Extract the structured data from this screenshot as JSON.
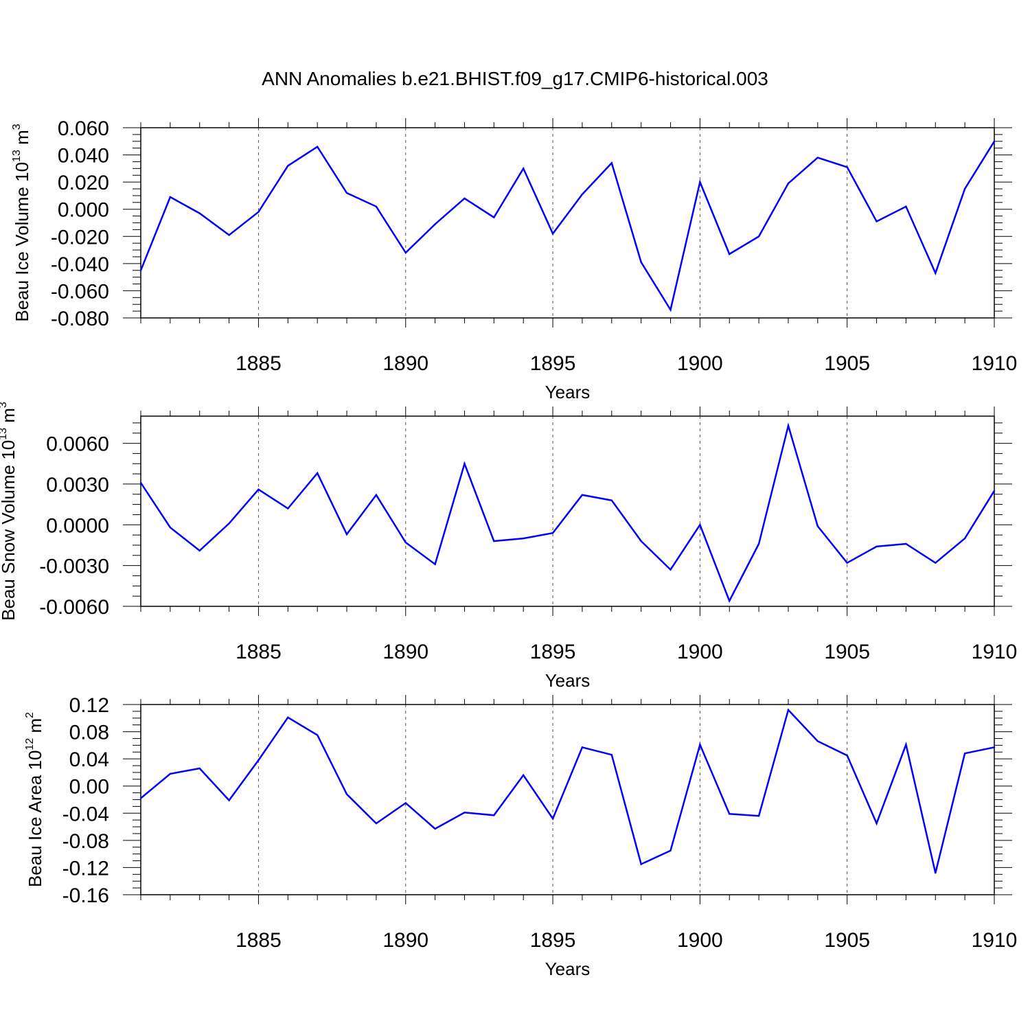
{
  "title": "ANN Anomalies b.e21.BHIST.f09_g17.CMIP6-historical.003",
  "chart_data": [
    {
      "type": "line",
      "title": "ANN Anomalies b.e21.BHIST.f09_g17.CMIP6-historical.003",
      "xlabel": "Years",
      "ylabel_text": "Beau Ice Volume 10",
      "ylabel_exp": "13",
      "ylabel_unit": " m",
      "ylabel_unit_exp": "3",
      "xlim": [
        1881,
        1910
      ],
      "ylim": [
        -0.08,
        0.06
      ],
      "yticks": [
        -0.08,
        -0.06,
        -0.04,
        -0.02,
        0.0,
        0.02,
        0.04,
        0.06
      ],
      "ytick_labels": [
        "-0.080",
        "-0.060",
        "-0.040",
        "-0.020",
        "0.000",
        "0.020",
        "0.040",
        "0.060"
      ],
      "xticks": [
        1885,
        1890,
        1895,
        1900,
        1905,
        1910
      ],
      "xtick_labels": [
        "1885",
        "1890",
        "1895",
        "1900",
        "1905",
        "1910"
      ],
      "grid": "vertical dashed at major x ticks",
      "line_color": "#0000ff",
      "x": [
        1881,
        1882,
        1883,
        1884,
        1885,
        1886,
        1887,
        1888,
        1889,
        1890,
        1891,
        1892,
        1893,
        1894,
        1895,
        1896,
        1897,
        1898,
        1899,
        1900,
        1901,
        1902,
        1903,
        1904,
        1905,
        1906,
        1907,
        1908,
        1909,
        1910
      ],
      "y": [
        -0.045,
        0.009,
        -0.003,
        -0.019,
        -0.002,
        0.032,
        0.046,
        0.012,
        0.002,
        -0.032,
        -0.011,
        0.008,
        -0.006,
        0.03,
        -0.018,
        0.011,
        0.034,
        -0.039,
        -0.074,
        0.02,
        -0.033,
        -0.02,
        0.019,
        0.038,
        0.031,
        -0.009,
        0.002,
        -0.047,
        0.015,
        0.05
      ]
    },
    {
      "type": "line",
      "xlabel": "Years",
      "ylabel_text": "Beau Snow Volume 10",
      "ylabel_exp": "13",
      "ylabel_unit": " m",
      "ylabel_unit_exp": "3",
      "xlim": [
        1881,
        1910
      ],
      "ylim": [
        -0.006,
        0.008
      ],
      "yticks": [
        -0.006,
        -0.003,
        0.0,
        0.003,
        0.006
      ],
      "ytick_labels": [
        "-0.0060",
        "-0.0030",
        "0.0000",
        "0.0030",
        "0.0060"
      ],
      "xticks": [
        1885,
        1890,
        1895,
        1900,
        1905,
        1910
      ],
      "xtick_labels": [
        "1885",
        "1890",
        "1895",
        "1900",
        "1905",
        "1910"
      ],
      "grid": "vertical dashed at major x ticks",
      "line_color": "#0000ff",
      "x": [
        1881,
        1882,
        1883,
        1884,
        1885,
        1886,
        1887,
        1888,
        1889,
        1890,
        1891,
        1892,
        1893,
        1894,
        1895,
        1896,
        1897,
        1898,
        1899,
        1900,
        1901,
        1902,
        1903,
        1904,
        1905,
        1906,
        1907,
        1908,
        1909,
        1910
      ],
      "y": [
        0.0031,
        -0.0002,
        -0.0019,
        0.0001,
        0.0026,
        0.0012,
        0.0038,
        -0.0007,
        0.0022,
        -0.0013,
        -0.0029,
        0.0045,
        -0.0012,
        -0.001,
        -0.0006,
        0.0022,
        0.0018,
        -0.0012,
        -0.0033,
        0.0,
        -0.0056,
        -0.0014,
        0.0073,
        -0.0001,
        -0.0028,
        -0.0016,
        -0.0014,
        -0.0028,
        -0.001,
        0.0025
      ]
    },
    {
      "type": "line",
      "xlabel": "Years",
      "ylabel_text": "Beau Ice Area 10",
      "ylabel_exp": "12",
      "ylabel_unit": " m",
      "ylabel_unit_exp": "2",
      "xlim": [
        1881,
        1910
      ],
      "ylim": [
        -0.16,
        0.12
      ],
      "yticks": [
        -0.16,
        -0.12,
        -0.08,
        -0.04,
        0.0,
        0.04,
        0.08,
        0.12
      ],
      "ytick_labels": [
        "-0.16",
        "-0.12",
        "-0.08",
        "-0.04",
        "0.00",
        "0.04",
        "0.08",
        "0.12"
      ],
      "xticks": [
        1885,
        1890,
        1895,
        1900,
        1905,
        1910
      ],
      "xtick_labels": [
        "1885",
        "1890",
        "1895",
        "1900",
        "1905",
        "1910"
      ],
      "grid": "vertical dashed at major x ticks",
      "line_color": "#0000ff",
      "x": [
        1881,
        1882,
        1883,
        1884,
        1885,
        1886,
        1887,
        1888,
        1889,
        1890,
        1891,
        1892,
        1893,
        1894,
        1895,
        1896,
        1897,
        1898,
        1899,
        1900,
        1901,
        1902,
        1903,
        1904,
        1905,
        1906,
        1907,
        1908,
        1909,
        1910
      ],
      "y": [
        -0.018,
        0.018,
        0.026,
        -0.021,
        0.038,
        0.101,
        0.075,
        -0.012,
        -0.055,
        -0.025,
        -0.063,
        -0.039,
        -0.043,
        0.016,
        -0.048,
        0.057,
        0.046,
        -0.115,
        -0.095,
        0.061,
        -0.041,
        -0.044,
        0.112,
        0.066,
        0.045,
        -0.055,
        0.061,
        -0.128,
        0.048,
        0.057
      ]
    }
  ]
}
